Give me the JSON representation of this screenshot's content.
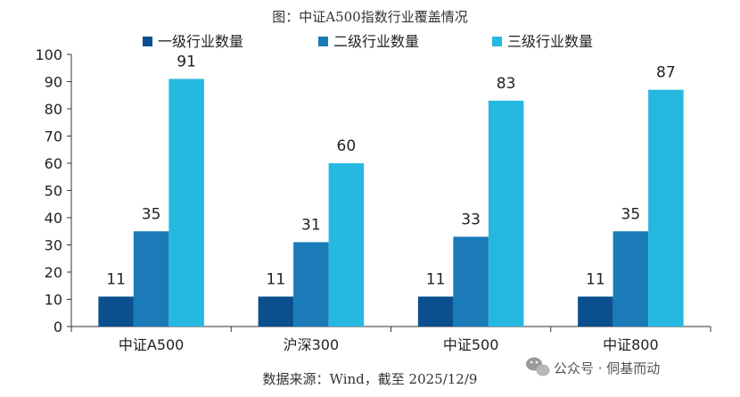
{
  "chart_data": {
    "type": "bar",
    "title": "图：中证A500指数行业覆盖情况",
    "categories": [
      "中证A500",
      "沪深300",
      "中证500",
      "中证800"
    ],
    "series": [
      {
        "name": "一级行业数量",
        "color": "#0b4f8f",
        "values": [
          11,
          11,
          11,
          11
        ]
      },
      {
        "name": "二级行业数量",
        "color": "#1a7bb8",
        "values": [
          35,
          31,
          33,
          35
        ]
      },
      {
        "name": "三级行业数量",
        "color": "#25b8e0",
        "values": [
          91,
          60,
          83,
          87
        ]
      }
    ],
    "ylim": [
      0,
      100
    ],
    "ystep": 10,
    "legend_position": "top",
    "grid": false,
    "source": "数据来源：Wind，截至 2025/12/9"
  },
  "watermark": {
    "text": "公众号 · 侗基而动",
    "icon": "wechat-icon"
  }
}
